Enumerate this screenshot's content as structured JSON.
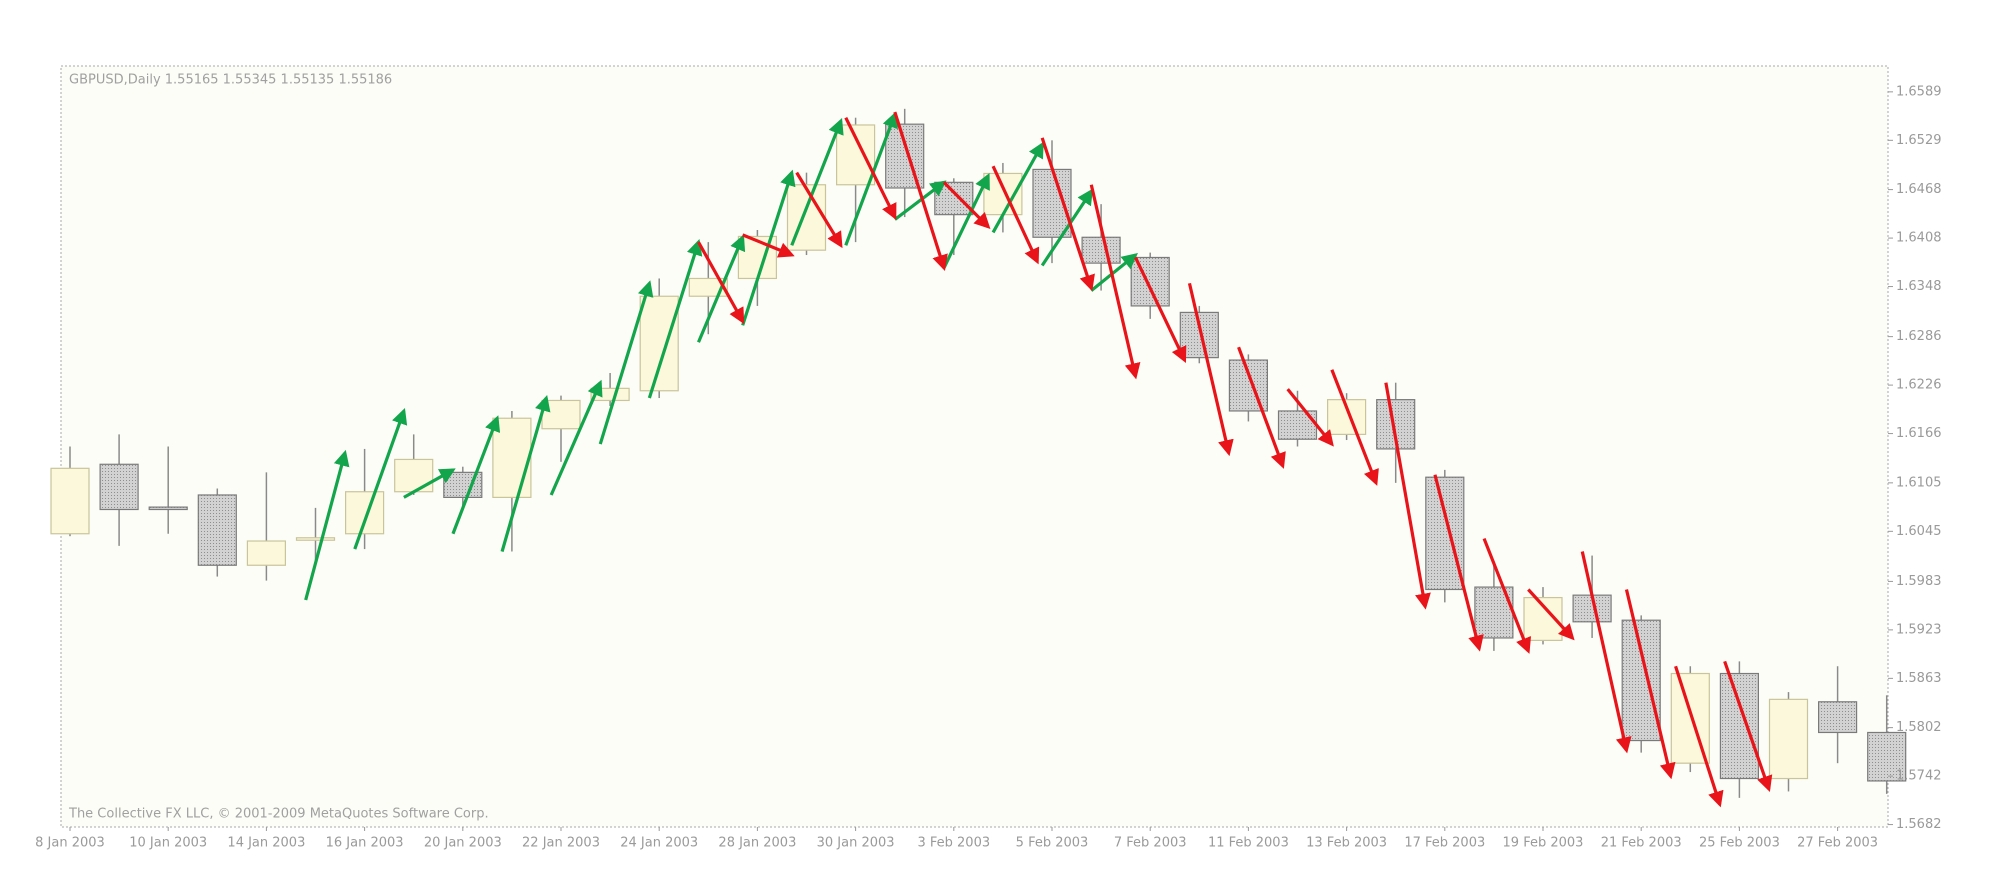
{
  "chart_data": {
    "type": "candlestick",
    "title": "GBPUSD,Daily  1.55165 1.55345 1.55135 1.55186",
    "footer": "The Collective FX LLC, © 2001-2009 MetaQuotes Software Corp.",
    "categories": [
      "8 Jan 2003",
      null,
      "10 Jan 2003",
      null,
      "14 Jan 2003",
      null,
      "16 Jan 2003",
      null,
      "20 Jan 2003",
      null,
      "22 Jan 2003",
      null,
      "24 Jan 2003",
      null,
      "28 Jan 2003",
      null,
      "30 Jan 2003",
      null,
      "3 Feb 2003",
      null,
      "5 Feb 2003",
      null,
      "7 Feb 2003",
      null,
      "11 Feb 2003",
      null,
      "13 Feb 2003",
      null,
      "17 Feb 2003",
      null,
      "19 Feb 2003",
      null,
      "21 Feb 2003",
      null,
      "25 Feb 2003",
      null,
      "27 Feb 2003",
      null
    ],
    "candles": {
      "open": [
        1.6042,
        1.6128,
        1.6075,
        1.609,
        1.6003,
        1.6034,
        1.6042,
        1.6094,
        1.6118,
        1.6087,
        1.6172,
        1.6207,
        1.6219,
        1.6336,
        1.6358,
        1.6393,
        1.6474,
        1.6549,
        1.6477,
        1.6437,
        1.6493,
        1.6409,
        1.6384,
        1.6316,
        1.6257,
        1.6194,
        1.6165,
        1.6208,
        1.6112,
        1.5976,
        1.591,
        1.5966,
        1.5935,
        1.5758,
        1.5869,
        1.5739,
        1.5834,
        1.5796
      ],
      "high": [
        1.615,
        1.6165,
        1.615,
        1.6098,
        1.6118,
        1.6074,
        1.6147,
        1.6165,
        1.6125,
        1.6194,
        1.6213,
        1.6241,
        1.6358,
        1.6403,
        1.6418,
        1.6489,
        1.6557,
        1.6568,
        1.6482,
        1.6501,
        1.6529,
        1.645,
        1.639,
        1.6324,
        1.6264,
        1.6219,
        1.6216,
        1.6229,
        1.6121,
        1.6008,
        1.5976,
        1.6015,
        1.5941,
        1.5878,
        1.5884,
        1.5846,
        1.5878,
        1.5842
      ],
      "low": [
        1.6039,
        1.6027,
        1.6042,
        1.5989,
        1.5984,
        1.6008,
        1.6023,
        1.609,
        1.6074,
        1.602,
        1.6131,
        1.62,
        1.621,
        1.6289,
        1.6324,
        1.6387,
        1.6403,
        1.6434,
        1.6387,
        1.6415,
        1.6377,
        1.6343,
        1.6308,
        1.6253,
        1.6181,
        1.615,
        1.6158,
        1.6105,
        1.5957,
        1.5897,
        1.5905,
        1.5913,
        1.5771,
        1.5747,
        1.5715,
        1.5723,
        1.5758,
        1.572
      ],
      "close": [
        1.6123,
        1.6072,
        1.6072,
        1.6003,
        1.6033,
        1.6037,
        1.6094,
        1.6134,
        1.6087,
        1.6185,
        1.6207,
        1.6222,
        1.6336,
        1.6358,
        1.641,
        1.6474,
        1.6548,
        1.647,
        1.6437,
        1.6488,
        1.6409,
        1.6377,
        1.6324,
        1.626,
        1.6194,
        1.6159,
        1.6208,
        1.6147,
        1.5973,
        1.5913,
        1.5963,
        1.5933,
        1.5786,
        1.5869,
        1.5739,
        1.5837,
        1.5796,
        1.5736
      ]
    },
    "up_color": "#fbf8dc",
    "down_color": "#c4c4c4",
    "arrows": {
      "up": {
        "color": "#13a54b",
        "list": [
          {
            "from": [
              4.8,
              1.596
            ],
            "to": [
              5.6,
              1.6142
            ]
          },
          {
            "from": [
              5.8,
              1.6023
            ],
            "to": [
              6.8,
              1.6194
            ]
          },
          {
            "from": [
              6.8,
              1.6087
            ],
            "to": [
              7.8,
              1.6121
            ]
          },
          {
            "from": [
              7.8,
              1.6042
            ],
            "to": [
              8.7,
              1.6185
            ]
          },
          {
            "from": [
              8.8,
              1.602
            ],
            "to": [
              9.7,
              1.621
            ]
          },
          {
            "from": [
              9.8,
              1.609
            ],
            "to": [
              10.8,
              1.6229
            ]
          },
          {
            "from": [
              10.8,
              1.6153
            ],
            "to": [
              11.8,
              1.6352
            ]
          },
          {
            "from": [
              11.8,
              1.621
            ],
            "to": [
              12.8,
              1.6403
            ]
          },
          {
            "from": [
              12.8,
              1.6279
            ],
            "to": [
              13.7,
              1.6409
            ]
          },
          {
            "from": [
              13.7,
              1.63
            ],
            "to": [
              14.7,
              1.6489
            ]
          },
          {
            "from": [
              14.7,
              1.6399
            ],
            "to": [
              15.7,
              1.6553
            ]
          },
          {
            "from": [
              15.8,
              1.6399
            ],
            "to": [
              16.8,
              1.6561
            ]
          },
          {
            "from": [
              16.8,
              1.6431
            ],
            "to": [
              17.8,
              1.6477
            ]
          },
          {
            "from": [
              17.8,
              1.6371
            ],
            "to": [
              18.7,
              1.6485
            ]
          },
          {
            "from": [
              18.8,
              1.6415
            ],
            "to": [
              19.8,
              1.6524
            ]
          },
          {
            "from": [
              19.8,
              1.6374
            ],
            "to": [
              20.8,
              1.6466
            ]
          },
          {
            "from": [
              20.8,
              1.6343
            ],
            "to": [
              21.7,
              1.6387
            ]
          }
        ]
      },
      "down": {
        "color": "#e8141a",
        "list": [
          {
            "from": [
              15.8,
              1.6557
            ],
            "to": [
              16.8,
              1.6434
            ]
          },
          {
            "from": [
              16.8,
              1.6564
            ],
            "to": [
              17.8,
              1.6371
            ]
          },
          {
            "from": [
              14.8,
              1.6489
            ],
            "to": [
              15.7,
              1.6399
            ]
          },
          {
            "from": [
              13.7,
              1.6412
            ],
            "to": [
              14.7,
              1.6387
            ]
          },
          {
            "from": [
              12.8,
              1.6403
            ],
            "to": [
              13.7,
              1.6305
            ]
          },
          {
            "from": [
              17.8,
              1.6477
            ],
            "to": [
              18.7,
              1.6422
            ]
          },
          {
            "from": [
              18.8,
              1.6497
            ],
            "to": [
              19.7,
              1.6379
            ]
          },
          {
            "from": [
              19.8,
              1.6532
            ],
            "to": [
              20.8,
              1.6346
            ]
          },
          {
            "from": [
              20.8,
              1.6474
            ],
            "to": [
              21.7,
              1.6237
            ]
          },
          {
            "from": [
              21.7,
              1.6384
            ],
            "to": [
              22.7,
              1.6257
            ]
          },
          {
            "from": [
              22.8,
              1.6352
            ],
            "to": [
              23.6,
              1.6142
            ]
          },
          {
            "from": [
              23.8,
              1.6273
            ],
            "to": [
              24.7,
              1.6126
            ]
          },
          {
            "from": [
              24.8,
              1.6221
            ],
            "to": [
              25.7,
              1.6153
            ]
          },
          {
            "from": [
              25.7,
              1.6245
            ],
            "to": [
              26.6,
              1.6105
            ]
          },
          {
            "from": [
              26.8,
              1.6229
            ],
            "to": [
              27.6,
              1.5952
            ]
          },
          {
            "from": [
              27.8,
              1.6115
            ],
            "to": [
              28.7,
              1.59
            ]
          },
          {
            "from": [
              28.8,
              1.6036
            ],
            "to": [
              29.7,
              1.5897
            ]
          },
          {
            "from": [
              29.7,
              1.5973
            ],
            "to": [
              30.6,
              1.5913
            ]
          },
          {
            "from": [
              30.8,
              1.602
            ],
            "to": [
              31.7,
              1.5774
            ]
          },
          {
            "from": [
              31.7,
              1.5973
            ],
            "to": [
              32.6,
              1.5742
            ]
          },
          {
            "from": [
              32.7,
              1.5878
            ],
            "to": [
              33.6,
              1.5707
            ]
          },
          {
            "from": [
              33.7,
              1.5884
            ],
            "to": [
              34.6,
              1.5726
            ]
          }
        ]
      }
    },
    "ylim": [
      1.5679,
      1.6621
    ],
    "yticks": [
      1.6589,
      1.6529,
      1.6468,
      1.6408,
      1.6348,
      1.6286,
      1.6226,
      1.6166,
      1.6105,
      1.6045,
      1.5983,
      1.5923,
      1.5863,
      1.5802,
      1.5742,
      1.5682
    ],
    "grid": false
  }
}
